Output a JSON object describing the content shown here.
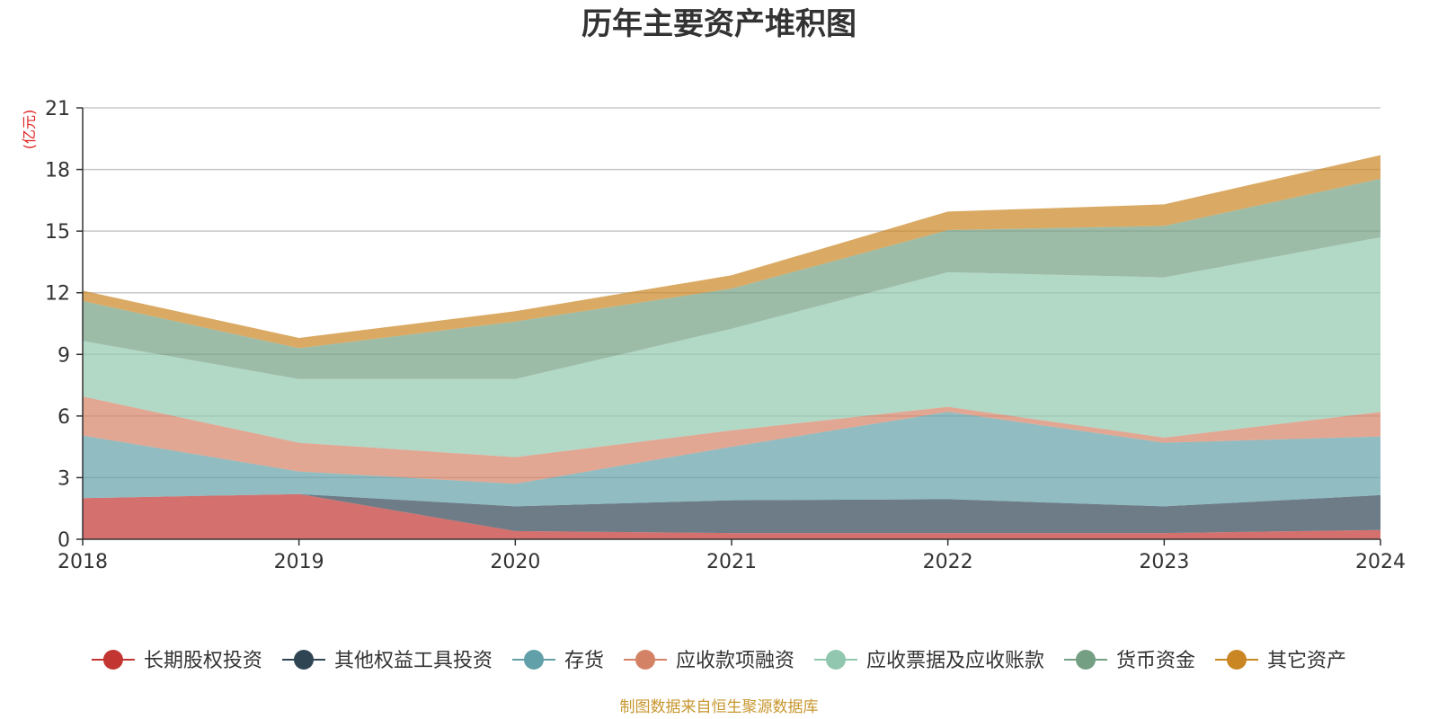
{
  "chart_data": {
    "type": "area",
    "stacked": true,
    "title": "历年主要资产堆积图",
    "ylabel": "(亿元)",
    "xlabel": "",
    "source": "制图数据来自恒生聚源数据库",
    "x": [
      "2018",
      "2019",
      "2020",
      "2021",
      "2022",
      "2023",
      "2024"
    ],
    "ylim": [
      0,
      21
    ],
    "yticks": [
      "0",
      "3",
      "6",
      "9",
      "12",
      "15",
      "18",
      "21"
    ],
    "grid": true,
    "legend_position": "bottom",
    "series": [
      {
        "name": "长期股权投资",
        "color": "#c23531",
        "values": [
          2.0,
          2.2,
          0.4,
          0.3,
          0.3,
          0.3,
          0.45
        ]
      },
      {
        "name": "其他权益工具投资",
        "color": "#2f4554",
        "values": [
          0.0,
          0.0,
          1.2,
          1.6,
          1.65,
          1.3,
          1.7
        ]
      },
      {
        "name": "存货",
        "color": "#61a0a8",
        "values": [
          3.05,
          1.1,
          1.1,
          2.6,
          4.25,
          3.1,
          2.85
        ]
      },
      {
        "name": "应收款项融资",
        "color": "#d48265",
        "values": [
          1.9,
          1.4,
          1.3,
          0.8,
          0.25,
          0.25,
          1.2
        ]
      },
      {
        "name": "应收票据及应收账款",
        "color": "#91c7ae",
        "values": [
          2.7,
          3.1,
          3.8,
          4.95,
          6.55,
          7.8,
          8.5
        ]
      },
      {
        "name": "货币资金",
        "color": "#749f83",
        "values": [
          1.95,
          1.5,
          2.8,
          1.95,
          2.05,
          2.5,
          2.85
        ]
      },
      {
        "name": "其它资产",
        "color": "#ca8622",
        "values": [
          0.5,
          0.5,
          0.5,
          0.65,
          0.9,
          1.05,
          1.15
        ]
      }
    ]
  }
}
